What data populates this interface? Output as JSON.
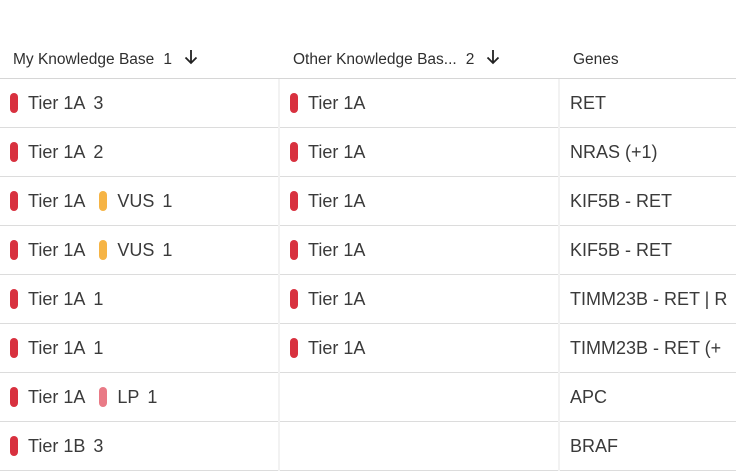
{
  "header": {
    "columns": [
      {
        "title": "My Knowledge Base",
        "sort_priority": 1
      },
      {
        "title": "Other Knowledge Bas...",
        "sort_priority": 2
      },
      {
        "title": "Genes"
      }
    ]
  },
  "table": {
    "rows": [
      {
        "mine": [
          {
            "label": "Tier 1A",
            "count": 3,
            "color": "#d8313f"
          }
        ],
        "other": [
          {
            "label": "Tier 1A",
            "color": "#d8313f"
          }
        ],
        "genes": "RET"
      },
      {
        "mine": [
          {
            "label": "Tier 1A",
            "count": 2,
            "color": "#d8313f"
          }
        ],
        "other": [
          {
            "label": "Tier 1A",
            "color": "#d8313f"
          }
        ],
        "genes": "NRAS (+1)"
      },
      {
        "mine": [
          {
            "label": "Tier 1A",
            "color": "#d8313f"
          },
          {
            "label": "VUS",
            "count": 1,
            "color": "#f6b445"
          }
        ],
        "other": [
          {
            "label": "Tier 1A",
            "color": "#d8313f"
          }
        ],
        "genes": "KIF5B - RET"
      },
      {
        "mine": [
          {
            "label": "Tier 1A",
            "color": "#d8313f"
          },
          {
            "label": "VUS",
            "count": 1,
            "color": "#f6b445"
          }
        ],
        "other": [
          {
            "label": "Tier 1A",
            "color": "#d8313f"
          }
        ],
        "genes": "KIF5B - RET"
      },
      {
        "mine": [
          {
            "label": "Tier 1A",
            "count": 1,
            "color": "#d8313f"
          }
        ],
        "other": [
          {
            "label": "Tier 1A",
            "color": "#d8313f"
          }
        ],
        "genes": "TIMM23B - RET | R"
      },
      {
        "mine": [
          {
            "label": "Tier 1A",
            "count": 1,
            "color": "#d8313f"
          }
        ],
        "other": [
          {
            "label": "Tier 1A",
            "color": "#d8313f"
          }
        ],
        "genes": "TIMM23B - RET (+"
      },
      {
        "mine": [
          {
            "label": "Tier 1A",
            "color": "#d8313f"
          },
          {
            "label": "LP",
            "count": 1,
            "color": "#e97a86"
          }
        ],
        "other": [],
        "genes": "APC"
      },
      {
        "mine": [
          {
            "label": "Tier 1B",
            "count": 3,
            "color": "#d8313f"
          }
        ],
        "other": [],
        "genes": "BRAF"
      }
    ]
  }
}
